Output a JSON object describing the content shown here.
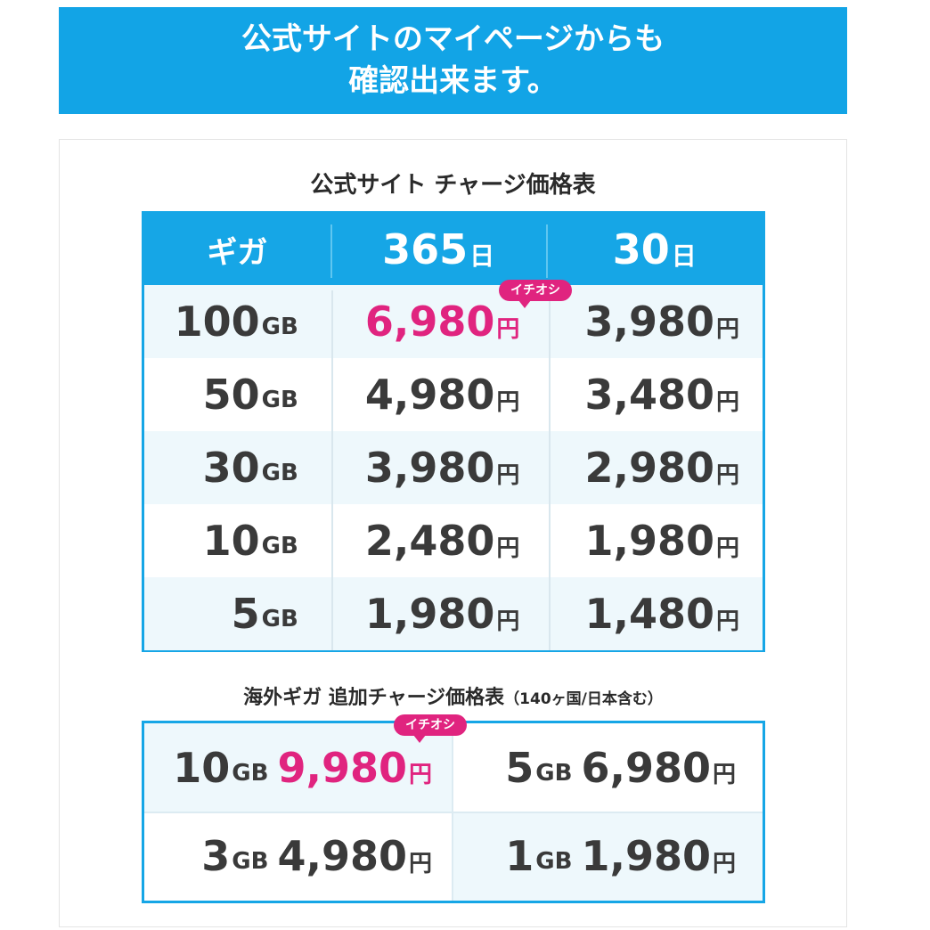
{
  "banner": {
    "line1": "公式サイトのマイページからも",
    "line2": "確認出来ます。"
  },
  "table1": {
    "title": "公式サイト チャージ価格表",
    "headers": [
      {
        "label": "ギガ",
        "unit": ""
      },
      {
        "label": "365",
        "unit": "日"
      },
      {
        "label": "30",
        "unit": "日"
      }
    ],
    "badge": "イチオシ",
    "rows": [
      {
        "giga": "100",
        "giga_unit": "GB",
        "p365": "6,980",
        "p30": "3,980",
        "yen": "円"
      },
      {
        "giga": "50",
        "giga_unit": "GB",
        "p365": "4,980",
        "p30": "3,480",
        "yen": "円"
      },
      {
        "giga": "30",
        "giga_unit": "GB",
        "p365": "3,980",
        "p30": "2,980",
        "yen": "円"
      },
      {
        "giga": "10",
        "giga_unit": "GB",
        "p365": "2,480",
        "p30": "1,980",
        "yen": "円"
      },
      {
        "giga": "5",
        "giga_unit": "GB",
        "p365": "1,980",
        "p30": "1,480",
        "yen": "円"
      }
    ]
  },
  "table2": {
    "title": "海外ギガ 追加チャージ価格表",
    "subtitle": "（140ヶ国/日本含む）",
    "badge": "イチオシ",
    "cells": [
      {
        "giga": "10",
        "giga_unit": "GB",
        "price": "9,980",
        "yen": "円"
      },
      {
        "giga": "5",
        "giga_unit": "GB",
        "price": "6,980",
        "yen": "円"
      },
      {
        "giga": "3",
        "giga_unit": "GB",
        "price": "4,980",
        "yen": "円"
      },
      {
        "giga": "1",
        "giga_unit": "GB",
        "price": "1,980",
        "yen": "円"
      }
    ]
  },
  "colors": {
    "accent_blue": "#16a6e6",
    "highlight_pink": "#e0247f",
    "row_shade": "#eef8fc"
  }
}
